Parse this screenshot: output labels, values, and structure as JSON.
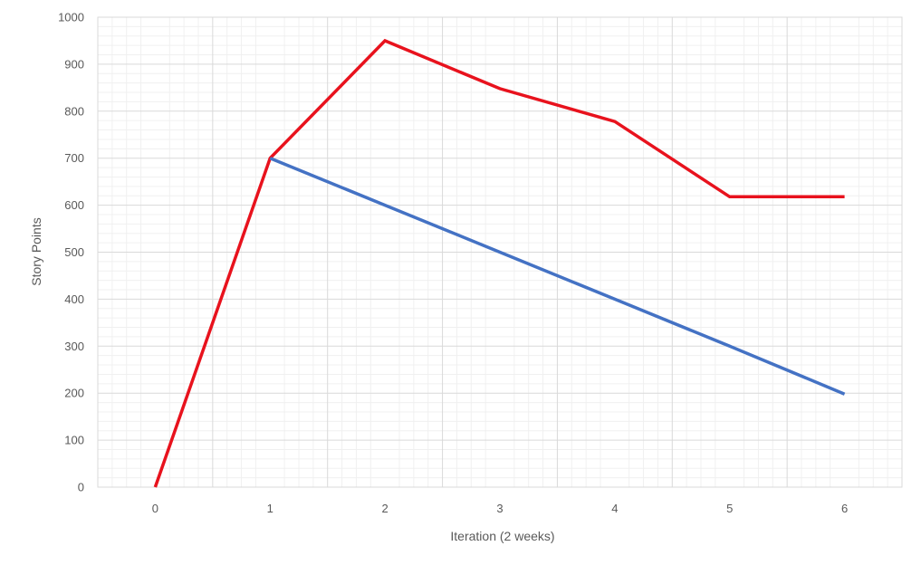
{
  "chart_data": {
    "type": "line",
    "title": "",
    "xlabel": "Iteration  (2 weeks)",
    "ylabel": "Story Points",
    "xlim": [
      -0.5,
      6.5
    ],
    "ylim": [
      0,
      1000
    ],
    "x_ticks": [
      0,
      1,
      2,
      3,
      4,
      5,
      6
    ],
    "y_ticks": [
      0,
      100,
      200,
      300,
      400,
      500,
      600,
      700,
      800,
      900,
      1000
    ],
    "grid": true,
    "legend": "none",
    "series": [
      {
        "color": "#e8121d",
        "x": [
          0,
          1,
          2,
          3,
          4,
          5,
          6
        ],
        "y": [
          0,
          700,
          950,
          848,
          778,
          618,
          618
        ]
      },
      {
        "color": "#4472c4",
        "x": [
          1,
          2,
          3,
          4,
          5,
          6
        ],
        "y": [
          700,
          600,
          500,
          400,
          300,
          198
        ]
      }
    ]
  }
}
